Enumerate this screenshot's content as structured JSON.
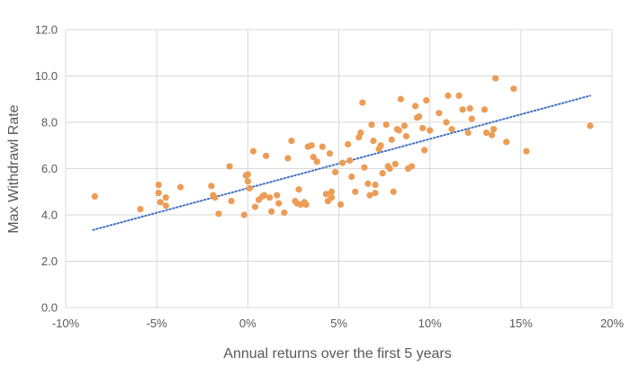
{
  "chart_data": {
    "type": "scatter",
    "title": "",
    "xlabel": "Annual returns over the first 5 years",
    "ylabel": "Max  Withdrawl Rate",
    "xlim": [
      -10,
      20
    ],
    "ylim": [
      0,
      12
    ],
    "x_ticks": [
      -10,
      -5,
      0,
      5,
      10,
      15,
      20
    ],
    "x_tick_labels": [
      "-10%",
      "-5%",
      "0%",
      "5%",
      "10%",
      "15%",
      "20%"
    ],
    "y_ticks": [
      0,
      2,
      4,
      6,
      8,
      10,
      12
    ],
    "y_tick_labels": [
      "0.0",
      "2.0",
      "4.0",
      "6.0",
      "8.0",
      "10.0",
      "12.0"
    ],
    "grid": true,
    "point_color": "#ED9C55",
    "trendline_color": "#4472C4",
    "trendline": {
      "x": [
        -8.5,
        18.8
      ],
      "y": [
        3.35,
        9.15
      ]
    },
    "series": [
      {
        "points": [
          [
            -8.4,
            4.8
          ],
          [
            -5.9,
            4.25
          ],
          [
            -4.9,
            5.3
          ],
          [
            -4.9,
            4.95
          ],
          [
            -4.8,
            4.55
          ],
          [
            -4.5,
            4.75
          ],
          [
            -4.5,
            4.4
          ],
          [
            -3.7,
            5.2
          ],
          [
            -2.0,
            5.25
          ],
          [
            -1.9,
            4.85
          ],
          [
            -1.8,
            4.75
          ],
          [
            -1.6,
            4.05
          ],
          [
            -1.0,
            6.1
          ],
          [
            -0.9,
            4.6
          ],
          [
            -0.2,
            4.0
          ],
          [
            -0.1,
            5.7
          ],
          [
            0.0,
            5.75
          ],
          [
            0.0,
            5.45
          ],
          [
            0.1,
            5.15
          ],
          [
            0.3,
            6.75
          ],
          [
            0.4,
            4.35
          ],
          [
            0.6,
            4.65
          ],
          [
            0.8,
            4.8
          ],
          [
            0.9,
            4.85
          ],
          [
            1.0,
            6.55
          ],
          [
            1.2,
            4.75
          ],
          [
            1.3,
            4.15
          ],
          [
            1.6,
            4.85
          ],
          [
            1.7,
            4.5
          ],
          [
            2.0,
            4.1
          ],
          [
            2.2,
            6.45
          ],
          [
            2.4,
            7.2
          ],
          [
            2.6,
            4.6
          ],
          [
            2.7,
            4.5
          ],
          [
            2.8,
            5.1
          ],
          [
            2.9,
            4.45
          ],
          [
            3.1,
            4.55
          ],
          [
            3.2,
            4.45
          ],
          [
            3.3,
            6.95
          ],
          [
            3.5,
            7.0
          ],
          [
            3.6,
            6.5
          ],
          [
            3.8,
            6.3
          ],
          [
            4.1,
            6.95
          ],
          [
            4.3,
            4.9
          ],
          [
            4.4,
            4.6
          ],
          [
            4.5,
            6.65
          ],
          [
            4.6,
            5.0
          ],
          [
            4.6,
            4.75
          ],
          [
            4.8,
            5.85
          ],
          [
            5.1,
            4.45
          ],
          [
            5.2,
            6.25
          ],
          [
            5.5,
            7.05
          ],
          [
            5.6,
            6.35
          ],
          [
            5.7,
            5.65
          ],
          [
            5.9,
            5.0
          ],
          [
            6.1,
            7.35
          ],
          [
            6.2,
            7.55
          ],
          [
            6.3,
            8.85
          ],
          [
            6.4,
            6.05
          ],
          [
            6.6,
            5.35
          ],
          [
            6.7,
            4.85
          ],
          [
            6.8,
            7.9
          ],
          [
            6.9,
            7.2
          ],
          [
            7.0,
            5.3
          ],
          [
            7.0,
            4.95
          ],
          [
            7.2,
            6.85
          ],
          [
            7.3,
            7.0
          ],
          [
            7.4,
            5.8
          ],
          [
            7.6,
            7.9
          ],
          [
            7.7,
            6.1
          ],
          [
            7.8,
            6.0
          ],
          [
            7.9,
            7.25
          ],
          [
            8.0,
            5.0
          ],
          [
            8.1,
            6.2
          ],
          [
            8.2,
            7.7
          ],
          [
            8.3,
            7.65
          ],
          [
            8.4,
            9.0
          ],
          [
            8.6,
            7.85
          ],
          [
            8.7,
            7.4
          ],
          [
            8.8,
            6.0
          ],
          [
            9.0,
            6.1
          ],
          [
            9.2,
            8.7
          ],
          [
            9.3,
            8.2
          ],
          [
            9.4,
            8.25
          ],
          [
            9.6,
            7.75
          ],
          [
            9.7,
            6.8
          ],
          [
            9.8,
            8.95
          ],
          [
            10.0,
            7.65
          ],
          [
            10.5,
            8.4
          ],
          [
            10.9,
            8.0
          ],
          [
            11.0,
            9.15
          ],
          [
            11.2,
            7.7
          ],
          [
            11.6,
            9.15
          ],
          [
            11.8,
            8.55
          ],
          [
            12.1,
            7.55
          ],
          [
            12.2,
            8.6
          ],
          [
            12.3,
            8.15
          ],
          [
            13.0,
            8.55
          ],
          [
            13.1,
            7.55
          ],
          [
            13.4,
            7.45
          ],
          [
            13.5,
            7.7
          ],
          [
            13.6,
            9.9
          ],
          [
            14.2,
            7.15
          ],
          [
            14.6,
            9.45
          ],
          [
            15.3,
            6.75
          ],
          [
            18.8,
            7.85
          ]
        ]
      }
    ]
  }
}
